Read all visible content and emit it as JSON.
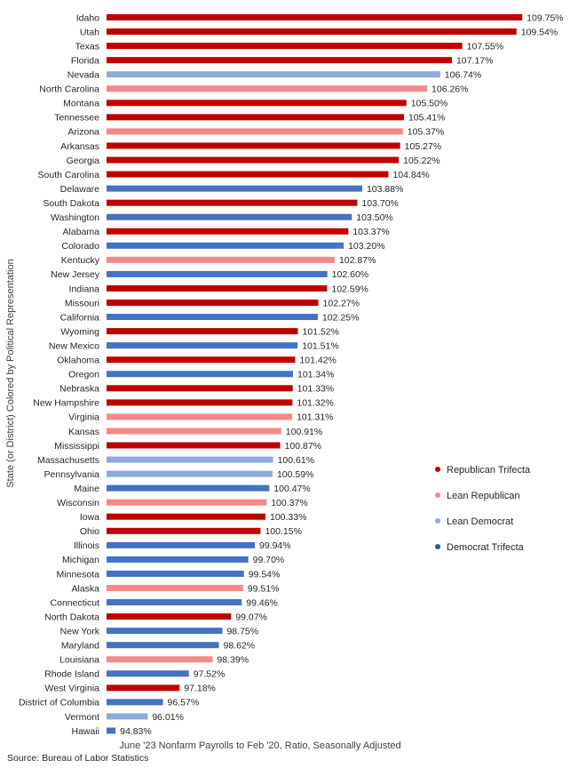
{
  "chart_data": {
    "type": "bar",
    "orientation": "horizontal",
    "xlabel": "June '23 Nonfarm Payrolls to Feb '20, Ratio, Seasonally Adjusted",
    "ylabel": "State (or District) Colored by Political Representation",
    "source": "Source: Bureau of Labor Statistics",
    "xlim": [
      94.5,
      110.2
    ],
    "legend_position": "right",
    "groups": [
      {
        "name": "Republican Trifecta",
        "color": "#c00000"
      },
      {
        "name": "Lean Republican",
        "color": "#f4898b"
      },
      {
        "name": "Lean Democrat",
        "color": "#8eaadb"
      },
      {
        "name": "Democrat Trifecta",
        "color": "#4472c4"
      }
    ],
    "legend_dot_colors": [
      "#c00000",
      "#f4898b",
      "#8eaadb",
      "#2f5597"
    ],
    "data": [
      {
        "state": "Idaho",
        "value": 109.75,
        "label": "109.75%",
        "group": 0
      },
      {
        "state": "Utah",
        "value": 109.54,
        "label": "109.54%",
        "group": 0
      },
      {
        "state": "Texas",
        "value": 107.55,
        "label": "107.55%",
        "group": 0
      },
      {
        "state": "Florida",
        "value": 107.17,
        "label": "107.17%",
        "group": 0
      },
      {
        "state": "Nevada",
        "value": 106.74,
        "label": "106.74%",
        "group": 2
      },
      {
        "state": "North Carolina",
        "value": 106.26,
        "label": "106.26%",
        "group": 1
      },
      {
        "state": "Montana",
        "value": 105.5,
        "label": "105.50%",
        "group": 0
      },
      {
        "state": "Tennessee",
        "value": 105.41,
        "label": "105.41%",
        "group": 0
      },
      {
        "state": "Arizona",
        "value": 105.37,
        "label": "105.37%",
        "group": 1
      },
      {
        "state": "Arkansas",
        "value": 105.27,
        "label": "105.27%",
        "group": 0
      },
      {
        "state": "Georgia",
        "value": 105.22,
        "label": "105.22%",
        "group": 0
      },
      {
        "state": "South Carolina",
        "value": 104.84,
        "label": "104.84%",
        "group": 0
      },
      {
        "state": "Delaware",
        "value": 103.88,
        "label": "103.88%",
        "group": 3
      },
      {
        "state": "South Dakota",
        "value": 103.7,
        "label": "103.70%",
        "group": 0
      },
      {
        "state": "Washington",
        "value": 103.5,
        "label": "103.50%",
        "group": 3
      },
      {
        "state": "Alabama",
        "value": 103.37,
        "label": "103.37%",
        "group": 0
      },
      {
        "state": "Colorado",
        "value": 103.2,
        "label": "103.20%",
        "group": 3
      },
      {
        "state": "Kentucky",
        "value": 102.87,
        "label": "102.87%",
        "group": 1
      },
      {
        "state": "New Jersey",
        "value": 102.6,
        "label": "102.60%",
        "group": 3
      },
      {
        "state": "Indiana",
        "value": 102.59,
        "label": "102.59%",
        "group": 0
      },
      {
        "state": "Missouri",
        "value": 102.27,
        "label": "102.27%",
        "group": 0
      },
      {
        "state": "California",
        "value": 102.25,
        "label": "102.25%",
        "group": 3
      },
      {
        "state": "Wyoming",
        "value": 101.52,
        "label": "101.52%",
        "group": 0
      },
      {
        "state": "New Mexico",
        "value": 101.51,
        "label": "101.51%",
        "group": 3
      },
      {
        "state": "Oklahoma",
        "value": 101.42,
        "label": "101.42%",
        "group": 0
      },
      {
        "state": "Oregon",
        "value": 101.34,
        "label": "101.34%",
        "group": 3
      },
      {
        "state": "Nebraska",
        "value": 101.33,
        "label": "101.33%",
        "group": 0
      },
      {
        "state": "New Hampshire",
        "value": 101.32,
        "label": "101.32%",
        "group": 0
      },
      {
        "state": "Virginia",
        "value": 101.31,
        "label": "101.31%",
        "group": 1
      },
      {
        "state": "Kansas",
        "value": 100.91,
        "label": "100.91%",
        "group": 1
      },
      {
        "state": "Mississippi",
        "value": 100.87,
        "label": "100.87%",
        "group": 0
      },
      {
        "state": "Massachusetts",
        "value": 100.61,
        "label": "100.61%",
        "group": 2
      },
      {
        "state": "Pennsylvania",
        "value": 100.59,
        "label": "100.59%",
        "group": 2
      },
      {
        "state": "Maine",
        "value": 100.47,
        "label": "100.47%",
        "group": 3
      },
      {
        "state": "Wisconsin",
        "value": 100.37,
        "label": "100.37%",
        "group": 1
      },
      {
        "state": "Iowa",
        "value": 100.33,
        "label": "100.33%",
        "group": 0
      },
      {
        "state": "Ohio",
        "value": 100.15,
        "label": "100.15%",
        "group": 0
      },
      {
        "state": "Illinois",
        "value": 99.94,
        "label": "99.94%",
        "group": 3
      },
      {
        "state": "Michigan",
        "value": 99.7,
        "label": "99.70%",
        "group": 3
      },
      {
        "state": "Minnesota",
        "value": 99.54,
        "label": "99.54%",
        "group": 3
      },
      {
        "state": "Alaska",
        "value": 99.51,
        "label": "99.51%",
        "group": 1
      },
      {
        "state": "Connecticut",
        "value": 99.46,
        "label": "99.46%",
        "group": 3
      },
      {
        "state": "North Dakota",
        "value": 99.07,
        "label": "99.07%",
        "group": 0
      },
      {
        "state": "New York",
        "value": 98.75,
        "label": "98.75%",
        "group": 3
      },
      {
        "state": "Maryland",
        "value": 98.62,
        "label": "98.62%",
        "group": 3
      },
      {
        "state": "Louisiana",
        "value": 98.39,
        "label": "98.39%",
        "group": 1
      },
      {
        "state": "Rhode Island",
        "value": 97.52,
        "label": "97.52%",
        "group": 3
      },
      {
        "state": "West Virginia",
        "value": 97.18,
        "label": "97.18%",
        "group": 0
      },
      {
        "state": "District of Columbia",
        "value": 96.57,
        "label": "96.57%",
        "group": 3
      },
      {
        "state": "Vermont",
        "value": 96.01,
        "label": "96.01%",
        "group": 2
      },
      {
        "state": "Hawaii",
        "value": 94.83,
        "label": "94.83%",
        "group": 3
      }
    ]
  }
}
